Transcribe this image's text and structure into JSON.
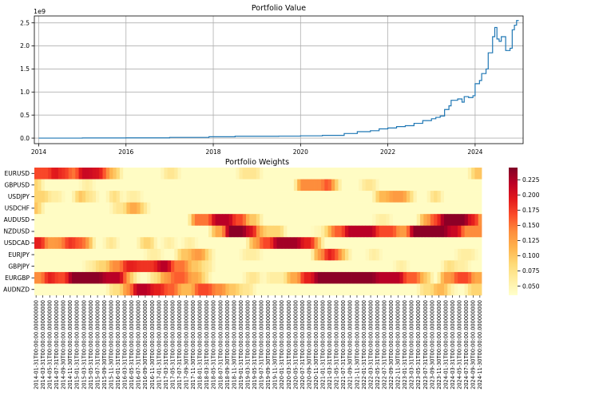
{
  "chart_data": [
    {
      "type": "line",
      "title": "Portfolio Value",
      "xlabel": "",
      "ylabel": "",
      "y_offset_label": "1e9",
      "xlim": [
        2013.9,
        2025.1
      ],
      "ylim": [
        -0.12,
        2.65
      ],
      "x_ticks": [
        "2014",
        "2016",
        "2018",
        "2020",
        "2022",
        "2024"
      ],
      "y_ticks": [
        "0.0",
        "0.5",
        "1.0",
        "1.5",
        "2.0",
        "2.5"
      ],
      "grid": true,
      "line_color": "#1f77b4",
      "points": [
        [
          2014.0,
          0.0
        ],
        [
          2015.0,
          0.003
        ],
        [
          2016.0,
          0.006
        ],
        [
          2017.0,
          0.015
        ],
        [
          2017.9,
          0.03
        ],
        [
          2018.5,
          0.04
        ],
        [
          2019.0,
          0.04
        ],
        [
          2019.5,
          0.043
        ],
        [
          2020.0,
          0.05
        ],
        [
          2020.5,
          0.06
        ],
        [
          2021.0,
          0.1
        ],
        [
          2021.3,
          0.14
        ],
        [
          2021.6,
          0.16
        ],
        [
          2021.8,
          0.2
        ],
        [
          2022.0,
          0.22
        ],
        [
          2022.2,
          0.25
        ],
        [
          2022.4,
          0.27
        ],
        [
          2022.6,
          0.32
        ],
        [
          2022.8,
          0.38
        ],
        [
          2023.0,
          0.42
        ],
        [
          2023.1,
          0.45
        ],
        [
          2023.2,
          0.48
        ],
        [
          2023.3,
          0.62
        ],
        [
          2023.4,
          0.7
        ],
        [
          2023.45,
          0.82
        ],
        [
          2023.6,
          0.85
        ],
        [
          2023.7,
          0.78
        ],
        [
          2023.75,
          0.9
        ],
        [
          2023.85,
          0.88
        ],
        [
          2023.95,
          0.92
        ],
        [
          2024.0,
          1.18
        ],
        [
          2024.1,
          1.25
        ],
        [
          2024.15,
          1.4
        ],
        [
          2024.25,
          1.5
        ],
        [
          2024.3,
          1.85
        ],
        [
          2024.4,
          2.2
        ],
        [
          2024.45,
          2.4
        ],
        [
          2024.5,
          2.15
        ],
        [
          2024.55,
          2.1
        ],
        [
          2024.6,
          2.2
        ],
        [
          2024.7,
          1.9
        ],
        [
          2024.8,
          1.95
        ],
        [
          2024.85,
          2.35
        ],
        [
          2024.9,
          2.45
        ],
        [
          2024.95,
          2.55
        ],
        [
          2025.0,
          2.55
        ]
      ]
    },
    {
      "type": "heatmap",
      "title": "Portfolio Weights",
      "rows": [
        "EURUSD",
        "GBPUSD",
        "USDJPY",
        "USDCHF",
        "AUDUSD",
        "NZDUSD",
        "USDCAD",
        "EURJPY",
        "GBPJPY",
        "EURGBP",
        "AUDNZD"
      ],
      "start_month": "2014-01",
      "n_months": 131,
      "x_tick_labels": [
        "2014-01-31T00:00:00.000000000",
        "2014-03-31T00:00:00.000000000",
        "2014-05-31T00:00:00.000000000",
        "2014-07-31T00:00:00.000000000",
        "2014-09-30T00:00:00.000000000",
        "2014-11-30T00:00:00.000000000",
        "2015-01-31T00:00:00.000000000",
        "2015-03-31T00:00:00.000000000",
        "2015-05-31T00:00:00.000000000",
        "2015-07-31T00:00:00.000000000",
        "2015-09-30T00:00:00.000000000",
        "2015-11-30T00:00:00.000000000",
        "2016-01-31T00:00:00.000000000",
        "2016-03-31T00:00:00.000000000",
        "2016-05-31T00:00:00.000000000",
        "2016-07-31T00:00:00.000000000",
        "2016-09-30T00:00:00.000000000",
        "2016-11-30T00:00:00.000000000",
        "2017-01-31T00:00:00.000000000",
        "2017-03-31T00:00:00.000000000",
        "2017-05-31T00:00:00.000000000",
        "2017-07-31T00:00:00.000000000",
        "2017-09-30T00:00:00.000000000",
        "2017-11-30T00:00:00.000000000",
        "2018-01-31T00:00:00.000000000",
        "2018-03-31T00:00:00.000000000",
        "2018-05-31T00:00:00.000000000",
        "2018-07-31T00:00:00.000000000",
        "2018-09-30T00:00:00.000000000",
        "2018-11-30T00:00:00.000000000",
        "2019-01-31T00:00:00.000000000",
        "2019-03-31T00:00:00.000000000",
        "2019-05-31T00:00:00.000000000",
        "2019-07-31T00:00:00.000000000",
        "2019-09-30T00:00:00.000000000",
        "2019-11-30T00:00:00.000000000",
        "2020-01-31T00:00:00.000000000",
        "2020-03-31T00:00:00.000000000",
        "2020-05-31T00:00:00.000000000",
        "2020-07-31T00:00:00.000000000",
        "2020-09-30T00:00:00.000000000",
        "2020-11-30T00:00:00.000000000",
        "2021-01-31T00:00:00.000000000",
        "2021-03-31T00:00:00.000000000",
        "2021-05-31T00:00:00.000000000",
        "2021-07-31T00:00:00.000000000",
        "2021-09-30T00:00:00.000000000",
        "2021-11-30T00:00:00.000000000",
        "2022-01-31T00:00:00.000000000",
        "2022-03-31T00:00:00.000000000",
        "2022-05-31T00:00:00.000000000",
        "2022-07-31T00:00:00.000000000",
        "2022-09-30T00:00:00.000000000",
        "2022-11-30T00:00:00.000000000",
        "2023-01-31T00:00:00.000000000",
        "2023-03-31T00:00:00.000000000",
        "2023-05-31T00:00:00.000000000",
        "2023-07-31T00:00:00.000000000",
        "2023-09-30T00:00:00.000000000",
        "2023-11-30T00:00:00.000000000",
        "2024-01-31T00:00:00.000000000",
        "2024-03-31T00:00:00.000000000",
        "2024-05-31T00:00:00.000000000",
        "2024-07-31T00:00:00.000000000",
        "2024-09-30T00:00:00.000000000",
        "2024-11-30T00:00:00.000000000"
      ],
      "value_range": [
        0.035,
        0.245
      ],
      "colorbar_ticks": [
        "0.050",
        "0.075",
        "0.100",
        "0.125",
        "0.150",
        "0.175",
        "0.200",
        "0.225"
      ],
      "colormap": "YlOrRd",
      "baseline": 0.04,
      "row_segments": {
        "EURUSD": [
          [
            0,
            5,
            0.17
          ],
          [
            5,
            7,
            0.2
          ],
          [
            7,
            10,
            0.18
          ],
          [
            10,
            13,
            0.15
          ],
          [
            13,
            17,
            0.21
          ],
          [
            17,
            20,
            0.2
          ],
          [
            20,
            22,
            0.15
          ],
          [
            22,
            25,
            0.1
          ],
          [
            38,
            42,
            0.07
          ],
          [
            60,
            66,
            0.07
          ],
          [
            128,
            131,
            0.1
          ]
        ],
        "GBPUSD": [
          [
            0,
            2,
            0.09
          ],
          [
            14,
            17,
            0.06
          ],
          [
            77,
            85,
            0.14
          ],
          [
            85,
            87,
            0.17
          ],
          [
            87,
            89,
            0.11
          ],
          [
            96,
            100,
            0.07
          ]
        ],
        "USDJPY": [
          [
            0,
            4,
            0.09
          ],
          [
            4,
            8,
            0.06
          ],
          [
            12,
            15,
            0.1
          ],
          [
            15,
            18,
            0.07
          ],
          [
            22,
            25,
            0.08
          ],
          [
            27,
            31,
            0.06
          ],
          [
            100,
            104,
            0.11
          ],
          [
            104,
            109,
            0.13
          ],
          [
            109,
            111,
            0.09
          ],
          [
            116,
            119,
            0.08
          ]
        ],
        "USDCHF": [
          [
            0,
            2,
            0.1
          ],
          [
            23,
            27,
            0.07
          ],
          [
            27,
            31,
            0.12
          ],
          [
            31,
            33,
            0.08
          ]
        ],
        "AUDUSD": [
          [
            46,
            52,
            0.15
          ],
          [
            52,
            58,
            0.22
          ],
          [
            58,
            62,
            0.17
          ],
          [
            62,
            66,
            0.1
          ],
          [
            100,
            104,
            0.06
          ],
          [
            113,
            116,
            0.12
          ],
          [
            116,
            119,
            0.17
          ],
          [
            119,
            127,
            0.24
          ],
          [
            127,
            130,
            0.19
          ],
          [
            130,
            131,
            0.12
          ]
        ],
        "NZDUSD": [
          [
            52,
            56,
            0.12
          ],
          [
            56,
            62,
            0.24
          ],
          [
            62,
            65,
            0.2
          ],
          [
            65,
            67,
            0.12
          ],
          [
            67,
            73,
            0.09
          ],
          [
            82,
            85,
            0.05
          ],
          [
            85,
            87,
            0.1
          ],
          [
            87,
            91,
            0.16
          ],
          [
            91,
            100,
            0.22
          ],
          [
            100,
            106,
            0.17
          ],
          [
            106,
            110,
            0.13
          ],
          [
            110,
            121,
            0.24
          ],
          [
            121,
            125,
            0.21
          ],
          [
            125,
            131,
            0.14
          ]
        ],
        "USDCAD": [
          [
            0,
            3,
            0.19
          ],
          [
            3,
            7,
            0.13
          ],
          [
            7,
            9,
            0.14
          ],
          [
            9,
            12,
            0.18
          ],
          [
            12,
            15,
            0.16
          ],
          [
            15,
            17,
            0.12
          ],
          [
            21,
            24,
            0.07
          ],
          [
            31,
            35,
            0.09
          ],
          [
            38,
            41,
            0.06
          ],
          [
            44,
            47,
            0.06
          ],
          [
            63,
            66,
            0.12
          ],
          [
            66,
            70,
            0.17
          ],
          [
            70,
            78,
            0.23
          ],
          [
            78,
            82,
            0.19
          ],
          [
            82,
            84,
            0.12
          ]
        ],
        "EURJPY": [
          [
            33,
            37,
            0.06
          ],
          [
            42,
            46,
            0.1
          ],
          [
            46,
            50,
            0.13
          ],
          [
            50,
            52,
            0.08
          ],
          [
            61,
            66,
            0.06
          ],
          [
            82,
            85,
            0.13
          ],
          [
            85,
            88,
            0.19
          ],
          [
            88,
            90,
            0.15
          ],
          [
            90,
            92,
            0.09
          ],
          [
            98,
            101,
            0.06
          ],
          [
            124,
            129,
            0.06
          ]
        ],
        "GBPJPY": [
          [
            15,
            18,
            0.06
          ],
          [
            18,
            22,
            0.09
          ],
          [
            22,
            26,
            0.14
          ],
          [
            26,
            30,
            0.19
          ],
          [
            30,
            36,
            0.18
          ],
          [
            36,
            40,
            0.22
          ],
          [
            40,
            45,
            0.15
          ],
          [
            45,
            49,
            0.1
          ],
          [
            49,
            52,
            0.07
          ],
          [
            106,
            109,
            0.06
          ],
          [
            120,
            123,
            0.08
          ],
          [
            123,
            127,
            0.06
          ]
        ],
        "EURGBP": [
          [
            0,
            3,
            0.14
          ],
          [
            3,
            6,
            0.19
          ],
          [
            6,
            10,
            0.17
          ],
          [
            10,
            20,
            0.24
          ],
          [
            20,
            26,
            0.22
          ],
          [
            26,
            28,
            0.14
          ],
          [
            28,
            30,
            0.08
          ],
          [
            34,
            37,
            0.08
          ],
          [
            37,
            40,
            0.13
          ],
          [
            40,
            45,
            0.16
          ],
          [
            45,
            49,
            0.12
          ],
          [
            49,
            51,
            0.08
          ],
          [
            62,
            66,
            0.07
          ],
          [
            68,
            74,
            0.06
          ],
          [
            74,
            78,
            0.12
          ],
          [
            78,
            82,
            0.19
          ],
          [
            82,
            100,
            0.24
          ],
          [
            100,
            108,
            0.22
          ],
          [
            108,
            113,
            0.16
          ],
          [
            113,
            116,
            0.1
          ],
          [
            119,
            123,
            0.13
          ],
          [
            123,
            128,
            0.17
          ],
          [
            128,
            131,
            0.12
          ]
        ],
        "AUDNZD": [
          [
            22,
            26,
            0.08
          ],
          [
            26,
            29,
            0.14
          ],
          [
            29,
            34,
            0.22
          ],
          [
            34,
            38,
            0.19
          ],
          [
            38,
            42,
            0.16
          ],
          [
            42,
            47,
            0.11
          ],
          [
            47,
            52,
            0.17
          ],
          [
            52,
            56,
            0.14
          ],
          [
            56,
            60,
            0.1
          ],
          [
            60,
            64,
            0.07
          ],
          [
            113,
            117,
            0.08
          ],
          [
            117,
            121,
            0.11
          ],
          [
            121,
            123,
            0.06
          ],
          [
            127,
            131,
            0.09
          ]
        ]
      }
    }
  ]
}
